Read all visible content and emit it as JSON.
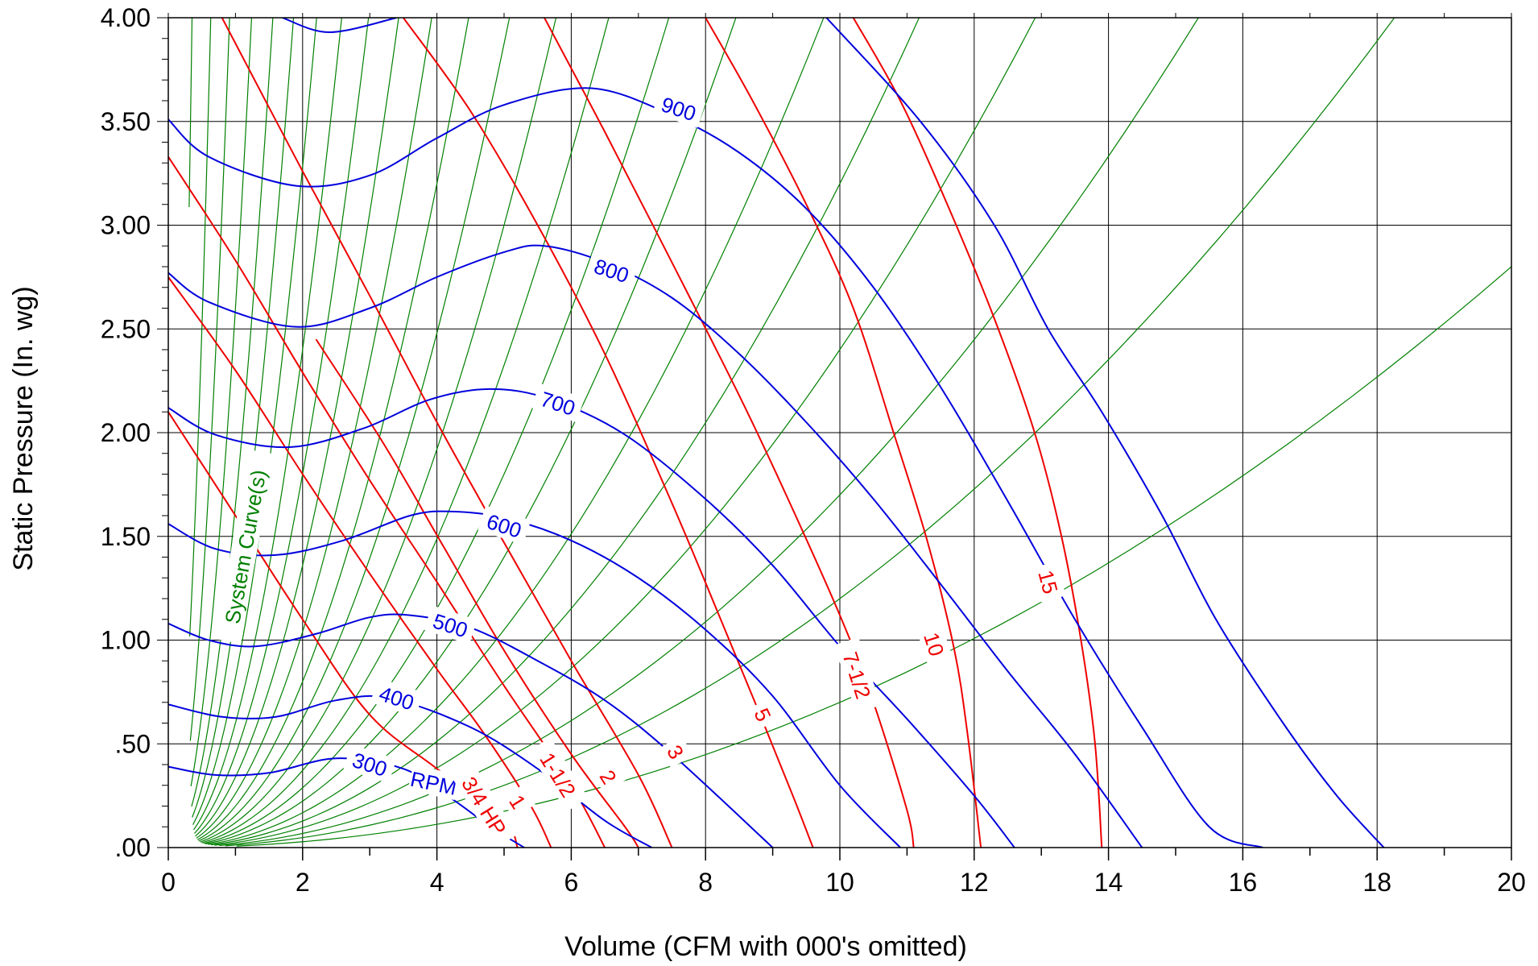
{
  "chart_data": {
    "type": "line",
    "title": "",
    "xlabel": "Volume (CFM with 000's omitted)",
    "ylabel": "Static Pressure (In. wg)",
    "xlim": [
      0,
      20
    ],
    "ylim": [
      0,
      4
    ],
    "grid": true,
    "x_ticks": [
      0,
      2,
      4,
      6,
      8,
      10,
      12,
      14,
      16,
      18,
      20
    ],
    "x_tick_labels": [
      "0",
      "2",
      "4",
      "6",
      "8",
      "10",
      "12",
      "14",
      "16",
      "18",
      "20"
    ],
    "y_ticks": [
      0,
      0.5,
      1,
      1.5,
      2,
      2.5,
      3,
      3.5,
      4
    ],
    "y_tick_labels": [
      ".00",
      ".50",
      "1.00",
      "1.50",
      "2.00",
      "2.50",
      "3.00",
      "3.50",
      "4.00"
    ],
    "colors": {
      "rpm": "#0000dd",
      "hp": "#ee0000",
      "system": "#008000",
      "grid": "#000000"
    },
    "rpm_curves": [
      {
        "label": "300",
        "label_suffix": "RPM",
        "label_pos": [
          3.0,
          0.4
        ],
        "points": [
          [
            0,
            0.39
          ],
          [
            0.7,
            0.35
          ],
          [
            1.5,
            0.36
          ],
          [
            2.5,
            0.43
          ],
          [
            3.5,
            0.38
          ],
          [
            4.2,
            0.24
          ],
          [
            4.8,
            0.1
          ],
          [
            5.3,
            0
          ]
        ]
      },
      {
        "label": "400",
        "label_pos": [
          3.4,
          0.72
        ],
        "points": [
          [
            0,
            0.69
          ],
          [
            0.8,
            0.63
          ],
          [
            1.6,
            0.63
          ],
          [
            2.5,
            0.71
          ],
          [
            3.3,
            0.72
          ],
          [
            4.5,
            0.58
          ],
          [
            5.5,
            0.38
          ],
          [
            6.5,
            0.13
          ],
          [
            7.2,
            0
          ]
        ]
      },
      {
        "label": "500",
        "label_pos": [
          4.2,
          1.07
        ],
        "points": [
          [
            0,
            1.08
          ],
          [
            0.6,
            1.0
          ],
          [
            1.3,
            0.97
          ],
          [
            2.2,
            1.03
          ],
          [
            3.0,
            1.11
          ],
          [
            3.6,
            1.12
          ],
          [
            4.5,
            1.06
          ],
          [
            5.5,
            0.9
          ],
          [
            6.5,
            0.71
          ],
          [
            7.5,
            0.45
          ],
          [
            9.0,
            0
          ]
        ]
      },
      {
        "label": "600",
        "label_pos": [
          5.0,
          1.55
        ],
        "points": [
          [
            0,
            1.56
          ],
          [
            0.7,
            1.44
          ],
          [
            1.6,
            1.41
          ],
          [
            2.6,
            1.48
          ],
          [
            3.6,
            1.6
          ],
          [
            4.2,
            1.62
          ],
          [
            5.0,
            1.59
          ],
          [
            6.0,
            1.48
          ],
          [
            7.0,
            1.3
          ],
          [
            8.0,
            1.05
          ],
          [
            9.0,
            0.73
          ],
          [
            10.0,
            0.3
          ],
          [
            10.9,
            0
          ]
        ]
      },
      {
        "label": "700",
        "label_pos": [
          5.8,
          2.14
        ],
        "points": [
          [
            0,
            2.12
          ],
          [
            0.7,
            1.99
          ],
          [
            1.8,
            1.93
          ],
          [
            2.9,
            2.02
          ],
          [
            3.9,
            2.16
          ],
          [
            4.8,
            2.21
          ],
          [
            5.7,
            2.16
          ],
          [
            6.8,
            1.99
          ],
          [
            8.0,
            1.68
          ],
          [
            9.0,
            1.36
          ],
          [
            10.0,
            0.97
          ],
          [
            11.0,
            0.62
          ],
          [
            12.0,
            0.25
          ],
          [
            12.6,
            0
          ]
        ]
      },
      {
        "label": "800",
        "label_pos": [
          6.6,
          2.78
        ],
        "points": [
          [
            0,
            2.77
          ],
          [
            0.6,
            2.63
          ],
          [
            1.9,
            2.51
          ],
          [
            3.0,
            2.6
          ],
          [
            4.0,
            2.75
          ],
          [
            5.0,
            2.87
          ],
          [
            5.6,
            2.9
          ],
          [
            6.5,
            2.82
          ],
          [
            7.5,
            2.65
          ],
          [
            8.5,
            2.38
          ],
          [
            9.5,
            2.05
          ],
          [
            10.5,
            1.68
          ],
          [
            11.5,
            1.27
          ],
          [
            12.5,
            0.85
          ],
          [
            13.5,
            0.45
          ],
          [
            14.5,
            0
          ]
        ]
      },
      {
        "label": "900",
        "label_pos": [
          7.6,
          3.56
        ],
        "points": [
          [
            0,
            3.51
          ],
          [
            0.6,
            3.33
          ],
          [
            1.9,
            3.19
          ],
          [
            3.0,
            3.24
          ],
          [
            4.0,
            3.42
          ],
          [
            5.0,
            3.58
          ],
          [
            6.3,
            3.66
          ],
          [
            7.5,
            3.53
          ],
          [
            8.5,
            3.35
          ],
          [
            9.5,
            3.08
          ],
          [
            10.5,
            2.7
          ],
          [
            11.5,
            2.22
          ],
          [
            12.5,
            1.67
          ],
          [
            13.5,
            1.1
          ],
          [
            14.5,
            0.58
          ],
          [
            15.5,
            0.1
          ],
          [
            16.3,
            0
          ]
        ]
      },
      {
        "label": "",
        "points": [
          [
            1.7,
            4.0
          ],
          [
            2.4,
            3.93
          ],
          [
            3.4,
            4.0
          ]
        ]
      },
      {
        "label": "",
        "points": [
          [
            9.8,
            4.0
          ],
          [
            11.2,
            3.5
          ],
          [
            12.3,
            3.0
          ],
          [
            13.1,
            2.5
          ],
          [
            13.9,
            2.1
          ],
          [
            14.8,
            1.6
          ],
          [
            15.6,
            1.1
          ],
          [
            16.6,
            0.6
          ],
          [
            17.4,
            0.25
          ],
          [
            18.1,
            0
          ]
        ]
      }
    ],
    "hp_curves": [
      {
        "label": "3/4 HP",
        "label_pos": [
          4.7,
          0.2
        ],
        "label_angle": 58,
        "points": [
          [
            0,
            2.75
          ],
          [
            1.0,
            2.3
          ],
          [
            2.0,
            1.8
          ],
          [
            3.0,
            1.32
          ],
          [
            4.0,
            0.86
          ],
          [
            4.7,
            0.55
          ],
          [
            5.4,
            0.2
          ],
          [
            5.7,
            0
          ]
        ]
      },
      {
        "label": "1",
        "label_pos": [
          5.2,
          0.22
        ],
        "label_angle": 58,
        "points": [
          [
            0,
            3.33
          ],
          [
            1.0,
            2.83
          ],
          [
            2.0,
            2.29
          ],
          [
            3.0,
            1.77
          ],
          [
            4.0,
            1.28
          ],
          [
            5.0,
            0.78
          ],
          [
            6.0,
            0.3
          ],
          [
            6.5,
            0
          ]
        ]
      },
      {
        "label": "1-1/2",
        "label_pos": [
          5.8,
          0.35
        ],
        "label_angle": 58,
        "points": [
          [
            0.8,
            4.0
          ],
          [
            2.0,
            3.26
          ],
          [
            3.0,
            2.66
          ],
          [
            4.0,
            2.05
          ],
          [
            5.0,
            1.47
          ],
          [
            6.0,
            0.9
          ],
          [
            7.0,
            0.35
          ],
          [
            7.5,
            0
          ]
        ]
      },
      {
        "label": "2",
        "label_pos": [
          6.55,
          0.34
        ],
        "label_angle": 58,
        "points": [
          [
            0,
            2.1
          ],
          [
            1.0,
            1.6
          ],
          [
            2.0,
            1.1
          ],
          [
            3.0,
            0.64
          ],
          [
            4.0,
            0.38
          ],
          [
            5.0,
            0.13
          ],
          [
            5.2,
            0
          ]
        ]
      },
      {
        "label": "3",
        "label_pos": [
          7.55,
          0.46
        ],
        "label_angle": 58,
        "points": [
          [
            5.6,
            4.0
          ],
          [
            6.5,
            3.45
          ],
          [
            7.5,
            2.82
          ],
          [
            8.5,
            2.18
          ],
          [
            9.2,
            1.7
          ],
          [
            10.0,
            1.12
          ],
          [
            10.5,
            0.7
          ],
          [
            11.0,
            0.18
          ],
          [
            11.1,
            0
          ]
        ]
      },
      {
        "label": "5",
        "label_pos": [
          8.85,
          0.64
        ],
        "label_angle": 65,
        "points": [
          [
            3.5,
            4.0
          ],
          [
            4.5,
            3.55
          ],
          [
            5.5,
            3.0
          ],
          [
            6.5,
            2.38
          ],
          [
            7.5,
            1.66
          ],
          [
            8.2,
            1.12
          ],
          [
            8.8,
            0.65
          ],
          [
            9.3,
            0.25
          ],
          [
            9.6,
            0
          ]
        ]
      },
      {
        "label": "7-1/2",
        "label_pos": [
          10.25,
          0.83
        ],
        "label_angle": 72,
        "points": [
          [
            8.0,
            4.0
          ],
          [
            8.7,
            3.6
          ],
          [
            9.5,
            3.1
          ],
          [
            10.2,
            2.6
          ],
          [
            10.8,
            2.0
          ],
          [
            11.3,
            1.48
          ],
          [
            11.7,
            0.96
          ],
          [
            11.9,
            0.55
          ],
          [
            12.1,
            0
          ]
        ]
      },
      {
        "label": "10",
        "label_pos": [
          11.4,
          0.98
        ],
        "label_angle": 72,
        "points": [
          [
            10.2,
            4.0
          ],
          [
            10.9,
            3.6
          ],
          [
            11.6,
            3.1
          ],
          [
            12.3,
            2.55
          ],
          [
            12.9,
            2.0
          ],
          [
            13.3,
            1.5
          ],
          [
            13.6,
            0.98
          ],
          [
            13.8,
            0.5
          ],
          [
            13.9,
            0
          ]
        ]
      },
      {
        "label": "15",
        "label_pos": [
          13.1,
          1.28
        ],
        "label_angle": 75,
        "points": [
          [
            2.2,
            2.45
          ],
          [
            3.2,
            1.95
          ],
          [
            4.1,
            1.45
          ],
          [
            5.0,
            0.95
          ],
          [
            6.0,
            0.45
          ],
          [
            6.8,
            0.1
          ],
          [
            7.0,
            0
          ]
        ]
      }
    ],
    "system_curve_label": "System Curve(s)",
    "system_curve_label_pos": [
      1.15,
      1.45
    ],
    "system_curve_k": [
      32,
      10,
      4.8,
      2.6,
      1.65,
      1.15,
      0.82,
      0.6,
      0.45,
      0.34,
      0.26,
      0.2,
      0.155,
      0.12,
      0.093,
      0.072,
      0.056,
      0.042,
      0.032,
      0.024,
      0.017,
      0.012,
      0.007
    ]
  }
}
